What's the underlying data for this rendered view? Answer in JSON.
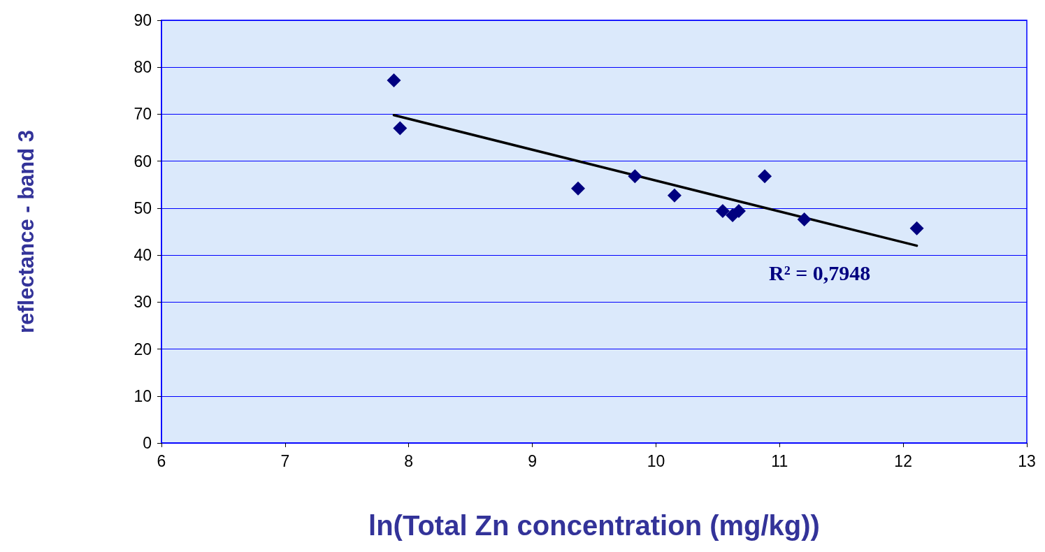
{
  "chart_data": {
    "type": "scatter",
    "xlabel": "ln(Total Zn concentration (mg/kg))",
    "ylabel": "reflectance - band 3",
    "series": [
      {
        "color": "#000080",
        "marker": "diamond",
        "x": [
          7.88,
          7.93,
          9.37,
          9.83,
          10.15,
          10.54,
          10.62,
          10.67,
          10.88,
          11.2,
          12.11
        ],
        "values": [
          77.2,
          67.0,
          54.2,
          56.8,
          52.7,
          49.4,
          48.5,
          49.4,
          56.8,
          47.6,
          45.7
        ]
      },
      {
        "type": "line",
        "color": "#000000",
        "marker": "none",
        "line_style": "solid",
        "x": [
          7.88,
          12.11
        ],
        "values": [
          69.8,
          42.0
        ]
      }
    ],
    "annotations": [
      "R² = 0,7948"
    ],
    "xlim": [
      6,
      13
    ],
    "xticks": [
      6,
      7,
      8,
      9,
      10,
      11,
      12,
      13
    ],
    "ylim": [
      0,
      90
    ],
    "yticks": [
      0,
      10,
      20,
      30,
      40,
      50,
      60,
      70,
      80,
      90
    ],
    "grid": "y"
  }
}
